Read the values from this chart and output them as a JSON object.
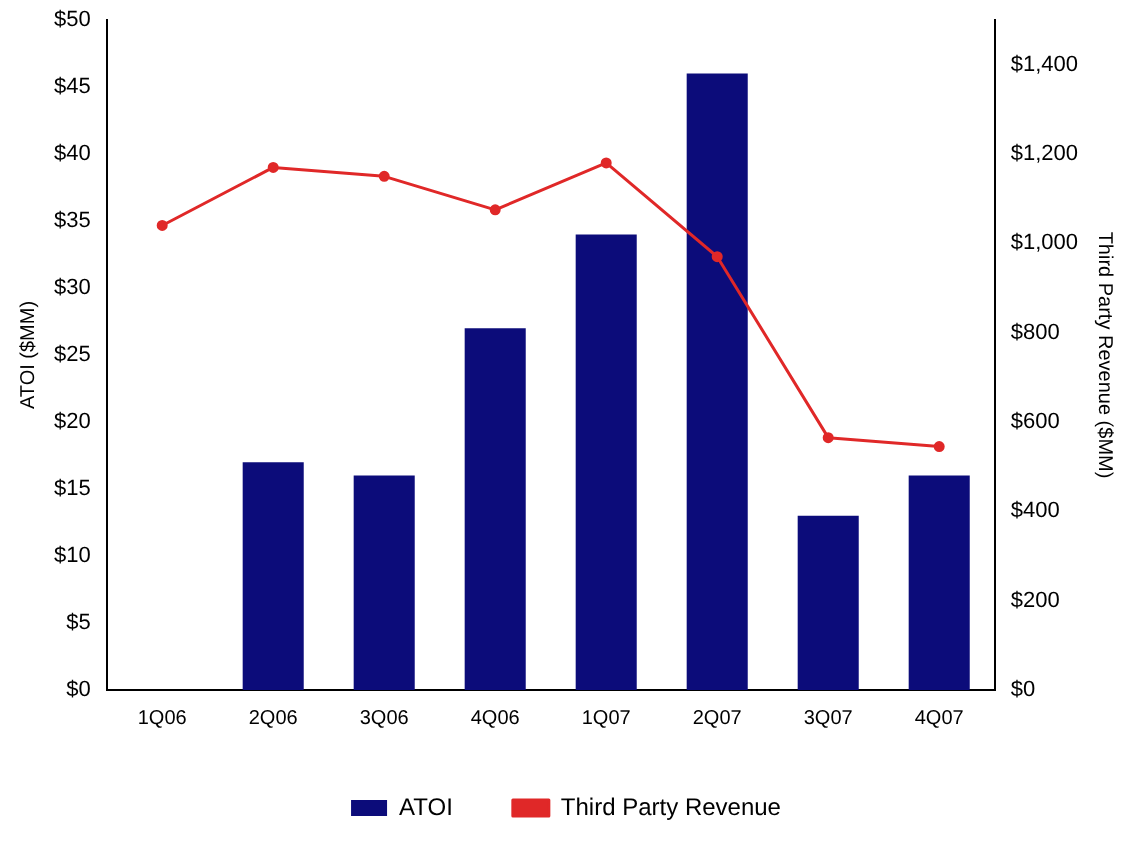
{
  "chart_data": {
    "type": "bar",
    "ylabel": "ATOI ($MM)",
    "y2label": "Third Party Revenue ($MM)",
    "categories": [
      "1Q06",
      "2Q06",
      "3Q06",
      "4Q06",
      "1Q07",
      "2Q07",
      "3Q07",
      "4Q07"
    ],
    "series": [
      {
        "name": "ATOI",
        "color": "#0c0c7a",
        "values": [
          null,
          17,
          16,
          27,
          34,
          46,
          13,
          16
        ]
      },
      {
        "name": "Third Party Revenue",
        "type": "line",
        "axis": "y2",
        "color": "#e02828",
        "values": [
          1040,
          1170,
          1150,
          1075,
          1180,
          970,
          565,
          545
        ]
      }
    ],
    "ylim": [
      0,
      50
    ],
    "yticks": [
      {
        "value": 0,
        "label": "$0"
      },
      {
        "value": 5,
        "label": "$5"
      },
      {
        "value": 10,
        "label": "$10"
      },
      {
        "value": 15,
        "label": "$15"
      },
      {
        "value": 20,
        "label": "$20"
      },
      {
        "value": 25,
        "label": "$25"
      },
      {
        "value": 30,
        "label": "$30"
      },
      {
        "value": 35,
        "label": "$35"
      },
      {
        "value": 40,
        "label": "$40"
      },
      {
        "value": 45,
        "label": "$45"
      },
      {
        "value": 50,
        "label": "$50"
      }
    ],
    "y2lim": [
      0,
      1500
    ],
    "y2ticks": [
      {
        "value": 0,
        "label": "$0"
      },
      {
        "value": 200,
        "label": "$200"
      },
      {
        "value": 400,
        "label": "$400"
      },
      {
        "value": 600,
        "label": "$600"
      },
      {
        "value": 800,
        "label": "$800"
      },
      {
        "value": 1000,
        "label": "$1,000"
      },
      {
        "value": 1200,
        "label": "$1,200"
      },
      {
        "value": 1400,
        "label": "$1,400"
      }
    ],
    "grid": false,
    "legend": "bottom",
    "marker": "circle",
    "line_style": "solid"
  }
}
